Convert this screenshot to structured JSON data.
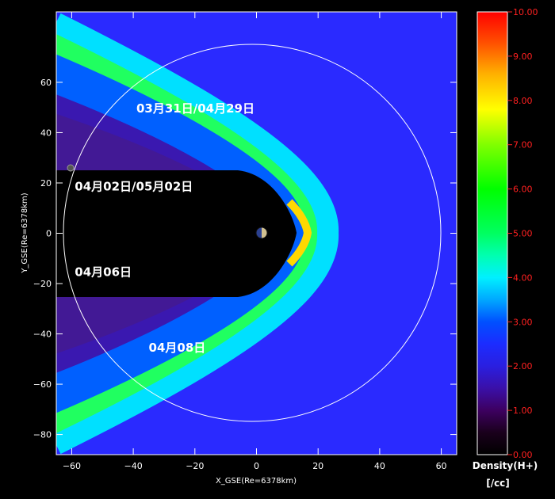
{
  "chart_data": {
    "type": "heatmap",
    "title": "",
    "xlabel": "X_GSE(Re=6378km)",
    "ylabel": "Y_GSE(Re=6378km)",
    "xlim": [
      -65,
      65
    ],
    "ylim": [
      -88,
      88
    ],
    "x_ticks": [
      -60,
      -40,
      -20,
      0,
      20,
      40,
      60
    ],
    "y_ticks": [
      -80,
      -60,
      -40,
      -20,
      0,
      20,
      40,
      60
    ],
    "grid": false,
    "background_density": 2.5,
    "annotations": [
      {
        "text": "03月31日/04月29日",
        "x": -39,
        "y": 48
      },
      {
        "text": "04月02日/05月02日",
        "x": -59,
        "y": 17
      },
      {
        "text": "04月06日",
        "x": -59,
        "y": -17
      },
      {
        "text": "04月08日",
        "x": -35,
        "y": -47
      }
    ],
    "orbit_circle": {
      "center": [
        -3.5,
        0
      ],
      "radius": 62.5
    },
    "spacecraft_marker": {
      "x": -60.5,
      "y": 21
    },
    "earth_marker": {
      "x": 0,
      "y": 0
    },
    "colorbar": {
      "label_line1": "Density(H+)",
      "label_line2": "[/cc]",
      "min": 0.0,
      "max": 10.0,
      "ticks": [
        "0.00",
        "1.00",
        "2.00",
        "3.00",
        "4.00",
        "5.00",
        "6.00",
        "7.00",
        "8.00",
        "9.00",
        "10.00"
      ]
    }
  }
}
